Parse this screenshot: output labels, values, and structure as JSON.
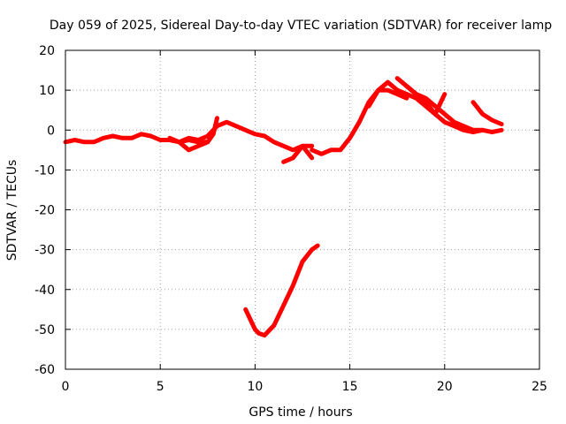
{
  "chart_data": {
    "type": "line",
    "title": "Day 059 of 2025, Sidereal Day-to-day VTEC variation (SDTVAR) for receiver lamp",
    "xlabel": "GPS time / hours",
    "ylabel": "SDTVAR / TECUs",
    "xlim": [
      0,
      25
    ],
    "ylim": [
      -60,
      20
    ],
    "xticks": [
      0,
      5,
      10,
      15,
      20,
      25
    ],
    "yticks": [
      -60,
      -50,
      -40,
      -30,
      -20,
      -10,
      0,
      10,
      20
    ],
    "grid": true,
    "series_color": "#ff0000",
    "series": [
      {
        "name": "trace-1",
        "x": [
          0,
          0.5,
          1,
          1.5,
          2,
          2.5,
          3,
          3.5,
          4,
          4.5,
          5,
          5.5,
          6,
          6.5,
          7,
          7.5
        ],
        "y": [
          -3,
          -2.5,
          -3,
          -3,
          -2,
          -1.5,
          -2,
          -2,
          -1,
          -1.5,
          -2.5,
          -2.5,
          -3,
          -2.5,
          -3,
          -3
        ]
      },
      {
        "name": "trace-2",
        "x": [
          5.5,
          6,
          6.5,
          7,
          7.5,
          7.8,
          8
        ],
        "y": [
          -2,
          -3,
          -5,
          -4,
          -3,
          -1,
          3
        ]
      },
      {
        "name": "trace-3",
        "x": [
          6,
          6.5,
          7,
          7.5,
          8,
          8.5,
          9,
          9.5,
          10,
          10.5,
          11,
          11.5,
          12,
          12.5,
          13
        ],
        "y": [
          -3,
          -2,
          -2.5,
          -1.5,
          1,
          2,
          1,
          0,
          -1,
          -1.5,
          -3,
          -4,
          -5,
          -4,
          -4
        ]
      },
      {
        "name": "trace-4",
        "x": [
          11.5,
          12,
          12.5,
          13
        ],
        "y": [
          -8,
          -7,
          -4,
          -7
        ]
      },
      {
        "name": "trace-5",
        "x": [
          13,
          13.5,
          14,
          14.5,
          15,
          15.5,
          16,
          16.5,
          17,
          17.5,
          18
        ],
        "y": [
          -5,
          -6,
          -5,
          -5,
          -2,
          2,
          7,
          10,
          10,
          9,
          8
        ]
      },
      {
        "name": "trace-6",
        "x": [
          16,
          16.5,
          17,
          17.5,
          18,
          18.5,
          19,
          19.5,
          20
        ],
        "y": [
          6,
          10,
          12,
          10,
          9,
          8,
          6,
          4,
          9
        ]
      },
      {
        "name": "trace-7",
        "x": [
          17.5,
          18,
          18.5,
          19,
          19.5,
          20,
          20.5,
          21,
          21.5,
          22,
          22.5,
          23
        ],
        "y": [
          13,
          11,
          9,
          7,
          4,
          2,
          1,
          0,
          -0.5,
          0,
          -0.5,
          0
        ]
      },
      {
        "name": "trace-8",
        "x": [
          18,
          18.5,
          19,
          19.5,
          20,
          20.5,
          21,
          21.5,
          22
        ],
        "y": [
          11,
          9,
          8,
          6,
          4,
          2,
          1,
          0,
          0
        ]
      },
      {
        "name": "trace-9",
        "x": [
          21.5,
          22,
          22.5,
          23
        ],
        "y": [
          7,
          4,
          2.5,
          1.5
        ]
      },
      {
        "name": "trace-10",
        "x": [
          9.5,
          10,
          10.2,
          10.5,
          11,
          11.5,
          12,
          12.5,
          13,
          13.3
        ],
        "y": [
          -45,
          -50,
          -51,
          -51.5,
          -49,
          -44,
          -39,
          -33,
          -30,
          -29
        ]
      }
    ]
  }
}
